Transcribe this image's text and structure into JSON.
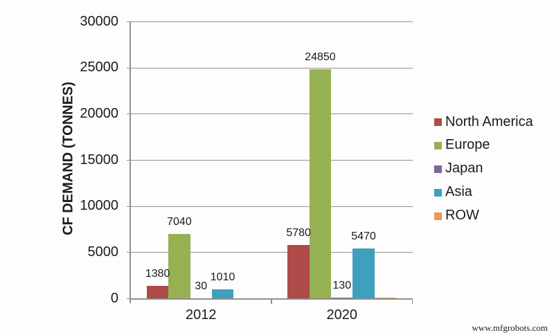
{
  "chart_data": {
    "type": "bar",
    "title": "",
    "xlabel": "",
    "ylabel": "CF DEMAND (TONNES)",
    "categories": [
      "2012",
      "2020"
    ],
    "series": [
      {
        "name": "North America",
        "color": "#ae4a47",
        "values": [
          1380,
          5780
        ],
        "labels": [
          "1380",
          "5780"
        ]
      },
      {
        "name": "Europe",
        "color": "#97b053",
        "values": [
          7040,
          24850
        ],
        "labels": [
          "7040",
          "24850"
        ]
      },
      {
        "name": "Japan",
        "color": "#7d64a0",
        "values": [
          30,
          130
        ],
        "labels": [
          "30",
          "130"
        ]
      },
      {
        "name": "Asia",
        "color": "#3fa0be",
        "values": [
          1010,
          5470
        ],
        "labels": [
          "1010",
          "5470"
        ]
      },
      {
        "name": "ROW",
        "color": "#e89a50",
        "values": [
          0,
          120
        ],
        "labels": [
          "",
          ""
        ]
      }
    ],
    "ylim": [
      0,
      30000
    ],
    "ytick_step": 5000,
    "yticks": [
      0,
      5000,
      10000,
      15000,
      20000,
      25000,
      30000
    ],
    "grid": true,
    "legend_position": "right"
  },
  "watermark": {
    "text": "www.mfgrobots.com"
  }
}
